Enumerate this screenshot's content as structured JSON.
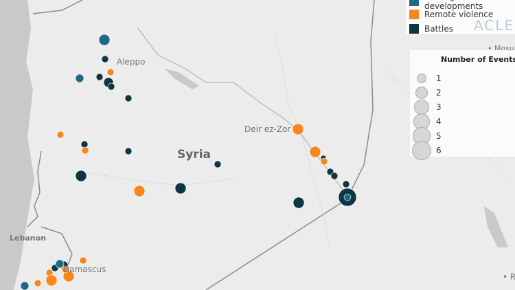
{
  "map": {
    "place_labels": {
      "aleppo": "Aleppo",
      "syria": "Syria",
      "deir": "Deir ez-Zor",
      "lebanon": "Lebanon",
      "damascus": "Damascus",
      "mosul": "• Mosul",
      "raqqa": "• Ra"
    },
    "watermark": "ACLED"
  },
  "legend": {
    "items": [
      {
        "label": "Strategic developments",
        "color": "#1e6a82"
      },
      {
        "label": "Remote violence",
        "color": "#f7861b"
      },
      {
        "label": "Battles",
        "color": "#0e3542"
      }
    ]
  },
  "size_legend": {
    "title": "Number of Events",
    "items": [
      "1",
      "2",
      "3",
      "4",
      "5",
      "6"
    ]
  },
  "colors": {
    "land": "#ececec",
    "sea": "#c9c9c9",
    "border": "#8a8a8a"
  }
}
